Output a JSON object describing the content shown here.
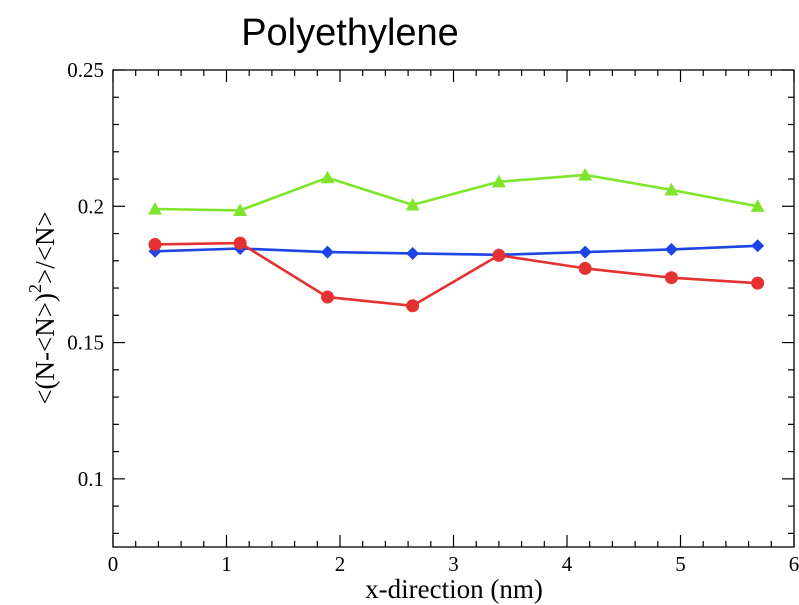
{
  "chart_data": {
    "type": "line",
    "title": "Polyethylene",
    "xlabel": "x-direction (nm)",
    "ylabel": {
      "prefix": "<(N-<N>)",
      "superscript": "2",
      "suffix": ">/<N>"
    },
    "xlim": [
      0,
      6
    ],
    "ylim": [
      0.075,
      0.25
    ],
    "xticks": [
      0,
      1,
      2,
      3,
      4,
      5,
      6
    ],
    "xtick_labels": [
      "0",
      "1",
      "2",
      "3",
      "4",
      "5",
      "6"
    ],
    "yticks": [
      0.1,
      0.15,
      0.2,
      0.25
    ],
    "ytick_labels": [
      "0.1",
      "0.15",
      "0.2",
      "0.25"
    ],
    "x_minor_step": 0.2,
    "y_minor_step": 0.01,
    "grid": false,
    "x": [
      0.37,
      1.12,
      1.89,
      2.64,
      3.4,
      4.16,
      4.92,
      5.68
    ],
    "series": [
      {
        "color": "#7fe52b",
        "marker": "triangle",
        "values": [
          0.199,
          0.1985,
          0.2105,
          0.2005,
          0.209,
          0.2115,
          0.206,
          0.2
        ]
      },
      {
        "color": "#1f44e6",
        "marker": "diamond",
        "values": [
          0.1835,
          0.1845,
          0.1832,
          0.1827,
          0.1822,
          0.1832,
          0.1842,
          0.1855
        ]
      },
      {
        "color": "#e53131",
        "marker": "circle",
        "values": [
          0.186,
          0.1865,
          0.1667,
          0.1635,
          0.182,
          0.1772,
          0.1738,
          0.1718
        ]
      }
    ]
  }
}
